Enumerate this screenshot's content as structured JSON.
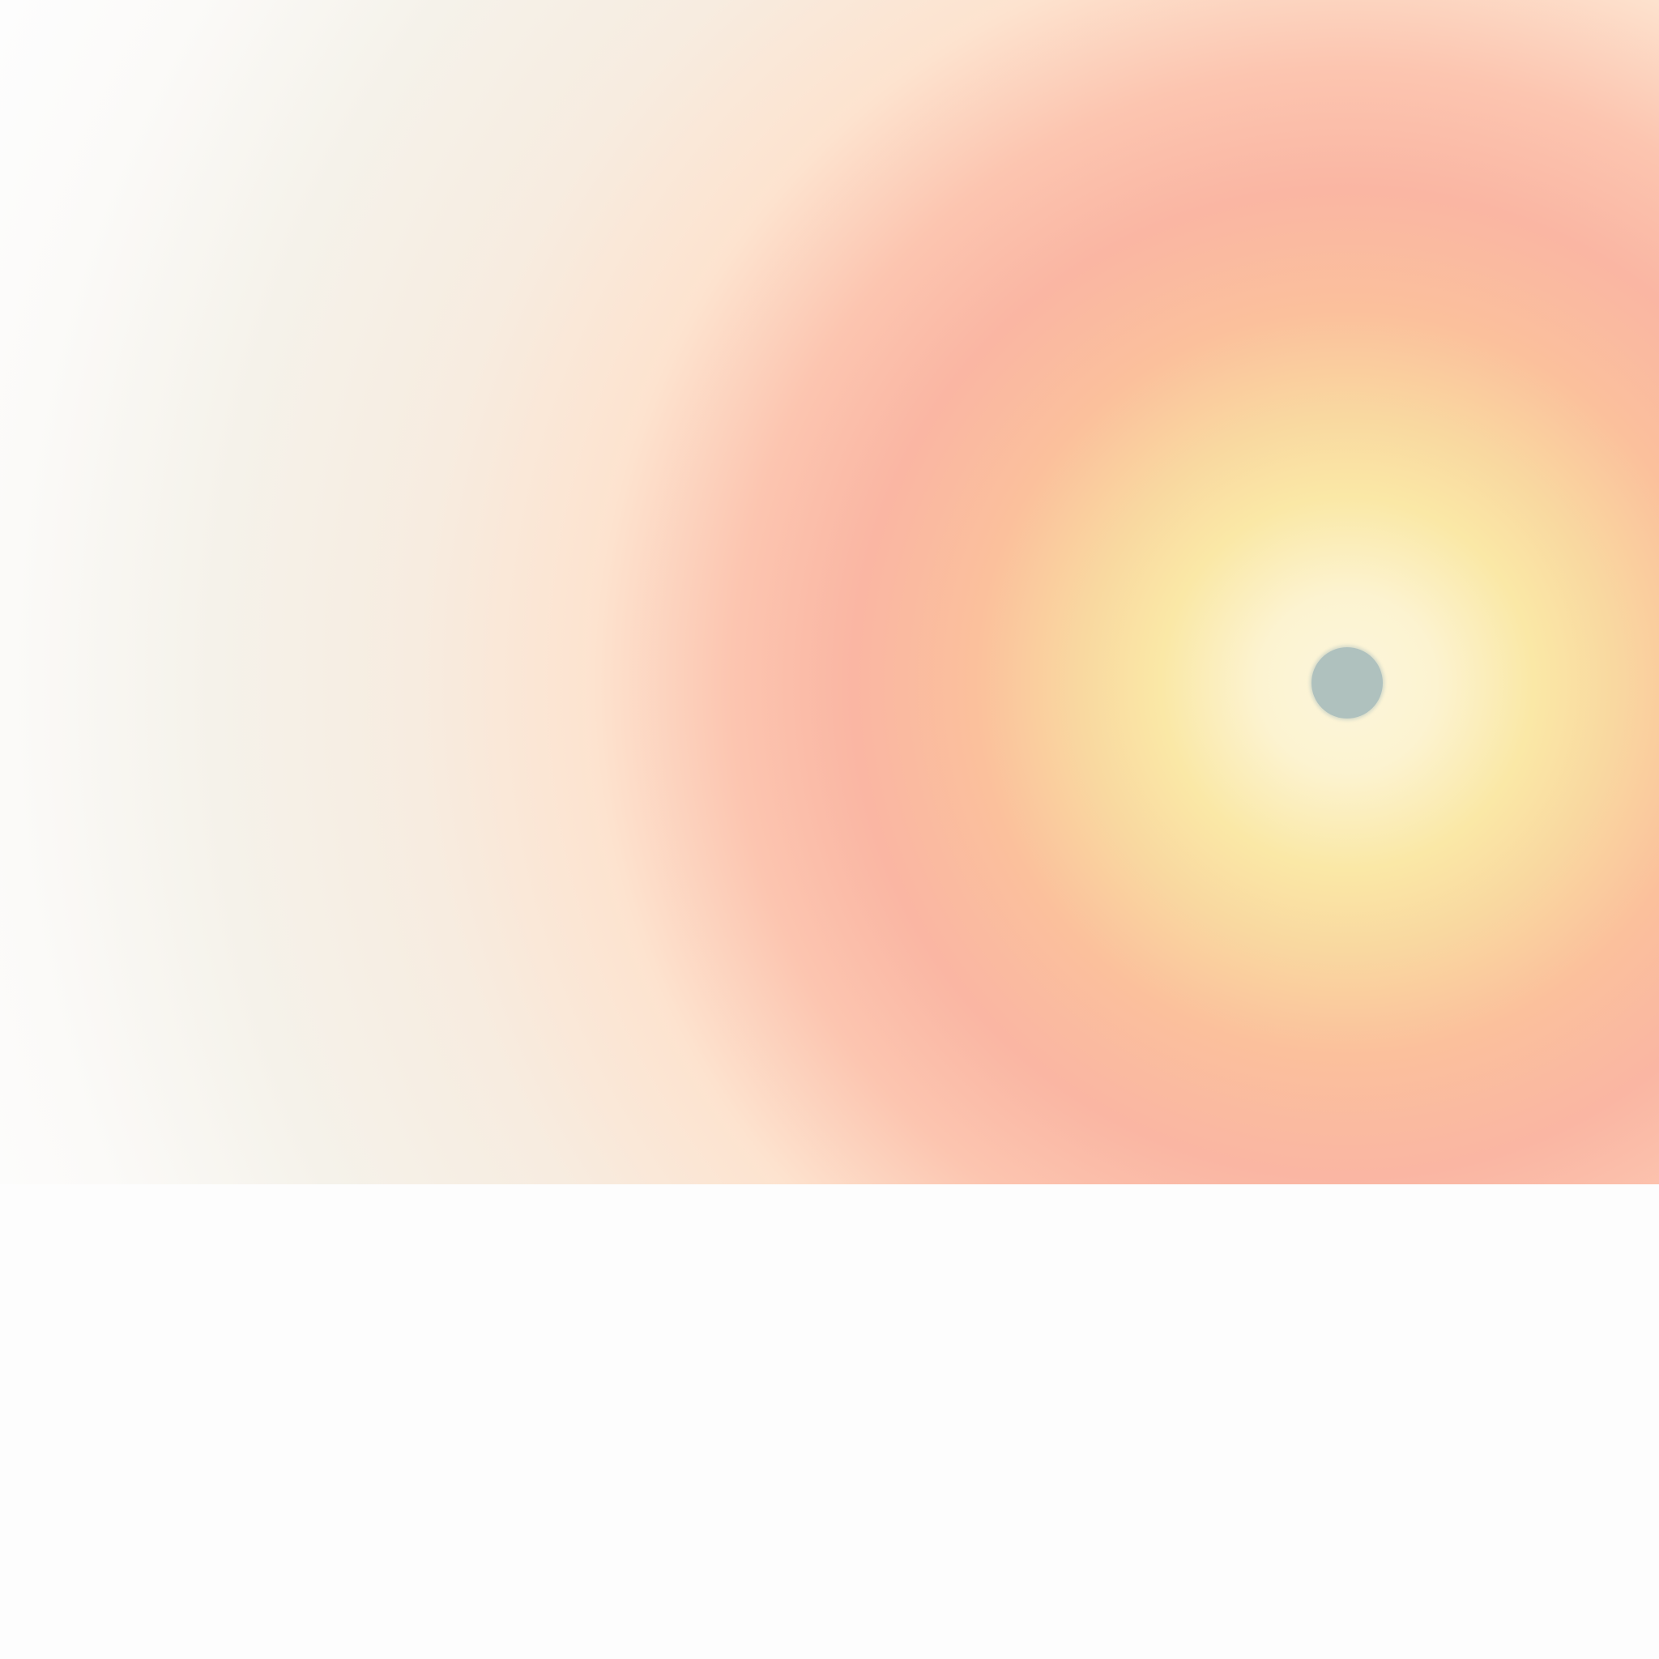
{
  "colors": {
    "background": "#fdfdfd",
    "center_glow": "#fdf6dc",
    "yellow_ring": "#fae8a6",
    "orange_ring": "#fbc09c",
    "salmon_ring": "#fab6a3",
    "peach_ring": "#fde3cf",
    "cream_fade": "#f5f2ea",
    "dot": "#afc1be"
  },
  "icons": {
    "focal_point": "circle-dot-icon"
  }
}
